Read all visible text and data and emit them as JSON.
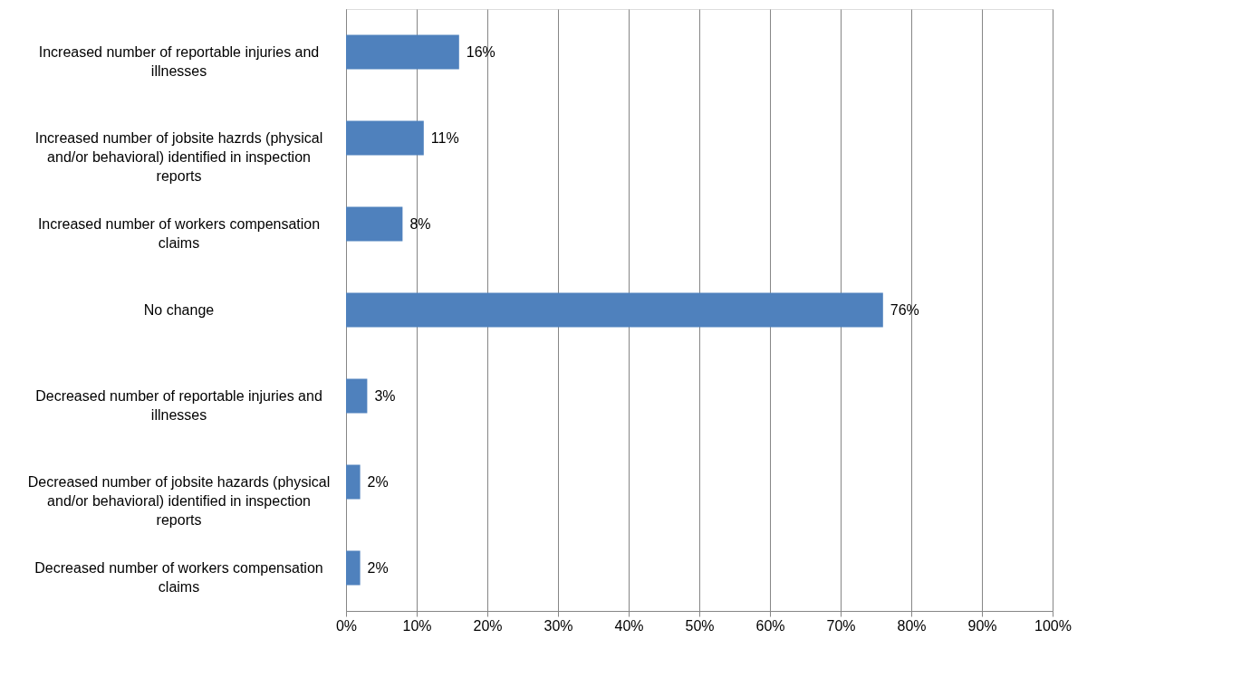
{
  "chart_data": {
    "type": "bar",
    "orientation": "horizontal",
    "categories": [
      "Increased number of reportable injuries and illnesses",
      "Increased number of jobsite hazrds (physical and/or behavioral) identified in inspection reports",
      "Increased number of workers compensation claims",
      "No change",
      "Decreased number of reportable injuries and illnesses",
      "Decreased number of jobsite hazards (physical and/or behavioral) identified in inspection reports",
      "Decreased number of workers compensation claims"
    ],
    "values": [
      16,
      11,
      8,
      76,
      3,
      2,
      2
    ],
    "value_labels": [
      "16%",
      "11%",
      "8%",
      "76%",
      "3%",
      "2%",
      "2%"
    ],
    "color": "#4f81bd",
    "xlim": [
      0,
      100
    ],
    "xticks": [
      {
        "value": 0,
        "label": "0%"
      },
      {
        "value": 10,
        "label": "10%"
      },
      {
        "value": 20,
        "label": "20%"
      },
      {
        "value": 30,
        "label": "30%"
      },
      {
        "value": 40,
        "label": "40%"
      },
      {
        "value": 50,
        "label": "50%"
      },
      {
        "value": 60,
        "label": "60%"
      },
      {
        "value": 70,
        "label": "70%"
      },
      {
        "value": 80,
        "label": "80%"
      },
      {
        "value": 90,
        "label": "90%"
      },
      {
        "value": 100,
        "label": "100%"
      }
    ],
    "grid": "x"
  }
}
